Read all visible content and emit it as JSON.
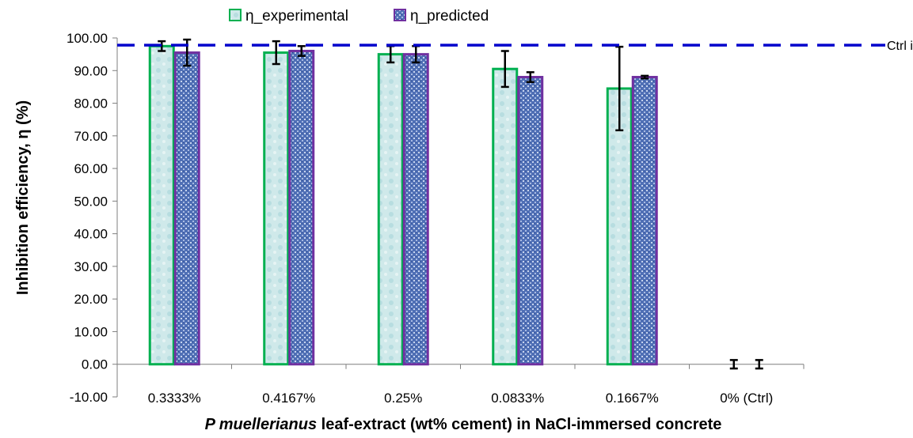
{
  "chart_data": {
    "type": "bar",
    "title": "",
    "xlabel_italic": "P muellerianus",
    "xlabel_rest": " leaf-extract (wt% cement) in NaCl-immersed concrete",
    "ylabel": "Inhibition efficiency, η (%)",
    "ylim": [
      -10,
      100
    ],
    "ytick_step": 10,
    "ytick_decimals": 2,
    "categories": [
      "0.3333%",
      "0.4167%",
      "0.25%",
      "0.0833%",
      "0.1667%",
      "0% (Ctrl)"
    ],
    "series": [
      {
        "name": "η_experimental",
        "values": [
          97.5,
          95.5,
          95.0,
          90.5,
          84.5,
          0.0
        ],
        "errors": [
          1.5,
          3.5,
          2.5,
          5.5,
          12.8,
          1.3
        ],
        "color": "#00b050",
        "fill": "#cfe9ea"
      },
      {
        "name": "η_predicted",
        "values": [
          95.5,
          96.0,
          95.0,
          88.0,
          88.0,
          0.0
        ],
        "errors": [
          4.0,
          1.5,
          2.5,
          1.5,
          0.4,
          1.3
        ],
        "color": "#7030a0",
        "fill": "#5b77b8"
      }
    ],
    "reference_line": {
      "value": 97.8,
      "label": "Ctrl in Water",
      "color": "#0000cc",
      "style": "dashed"
    },
    "legend_position": "top",
    "grid": false
  }
}
